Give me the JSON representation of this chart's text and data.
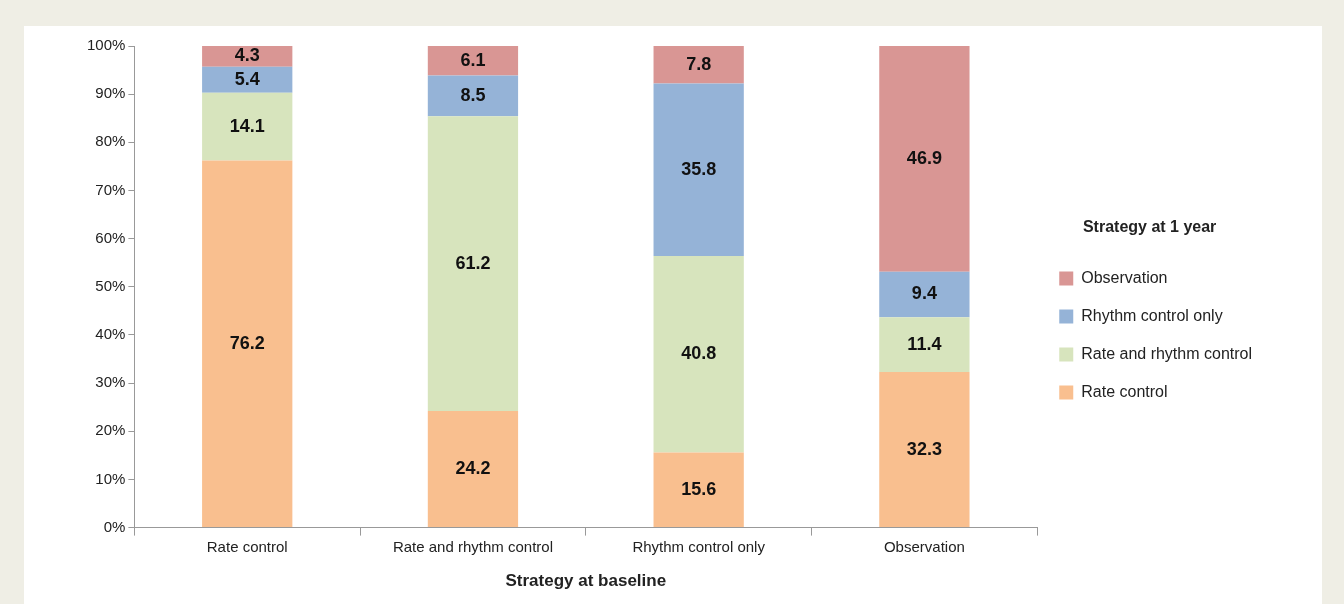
{
  "chart_data": {
    "type": "bar",
    "stacked": true,
    "xlabel": "Strategy at baseline",
    "legend_title": "Strategy at 1 year",
    "legend": "right",
    "data_labels": true,
    "grid": false,
    "categories": [
      "Rate control",
      "Rate and rhythm control",
      "Rhythm control only",
      "Observation"
    ],
    "ylim": [
      0,
      100
    ],
    "yticks": [
      {
        "value": 0,
        "label": "0%"
      },
      {
        "value": 10,
        "label": "10%"
      },
      {
        "value": 20,
        "label": "20%"
      },
      {
        "value": 30,
        "label": "30%"
      },
      {
        "value": 40,
        "label": "40%"
      },
      {
        "value": 50,
        "label": "50%"
      },
      {
        "value": 60,
        "label": "60%"
      },
      {
        "value": 70,
        "label": "70%"
      },
      {
        "value": 80,
        "label": "80%"
      },
      {
        "value": 90,
        "label": "90%"
      },
      {
        "value": 100,
        "label": "100%"
      }
    ],
    "series": [
      {
        "name": "Rate control",
        "color": "#f9bf8f",
        "values": [
          76.2,
          24.2,
          15.6,
          32.3
        ]
      },
      {
        "name": "Rate and rhythm control",
        "color": "#d7e4bd",
        "values": [
          14.1,
          61.2,
          40.8,
          11.4
        ]
      },
      {
        "name": "Rhythm control only",
        "color": "#95b3d7",
        "values": [
          5.4,
          8.5,
          35.8,
          9.4
        ]
      },
      {
        "name": "Observation",
        "color": "#d99694",
        "values": [
          4.3,
          6.1,
          7.8,
          46.9
        ]
      }
    ]
  }
}
